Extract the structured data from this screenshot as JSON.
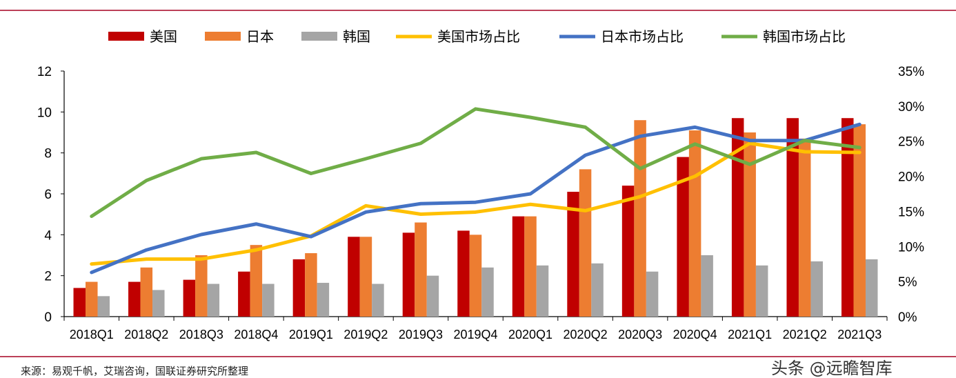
{
  "chart_data": {
    "type": "bar",
    "title": "",
    "categories": [
      "2018Q1",
      "2018Q2",
      "2018Q3",
      "2018Q4",
      "2019Q1",
      "2019Q2",
      "2019Q3",
      "2019Q4",
      "2020Q1",
      "2020Q2",
      "2020Q3",
      "2020Q4",
      "2021Q1",
      "2021Q2",
      "2021Q3"
    ],
    "y_left": {
      "ylim": [
        0,
        12
      ],
      "ticks": [
        "0",
        "2",
        "4",
        "6",
        "8",
        "10",
        "12"
      ]
    },
    "y_right": {
      "ylim": [
        0,
        35
      ],
      "ticks": [
        "0%",
        "5%",
        "10%",
        "15%",
        "20%",
        "25%",
        "30%",
        "35%"
      ],
      "unit": "%"
    },
    "grid": false,
    "legend_position": "top",
    "bar_series": [
      {
        "name": "美国",
        "color": "#c00000",
        "values": [
          1.4,
          1.7,
          1.8,
          2.2,
          2.8,
          3.9,
          4.1,
          4.2,
          4.9,
          6.1,
          6.4,
          7.8,
          9.7,
          9.7,
          9.7
        ]
      },
      {
        "name": "日本",
        "color": "#ed7d31",
        "values": [
          1.7,
          2.4,
          3.0,
          3.5,
          3.1,
          3.9,
          4.6,
          4.0,
          4.9,
          7.2,
          9.6,
          9.1,
          9.0,
          8.7,
          9.4
        ]
      },
      {
        "name": "韩国",
        "color": "#a5a5a5",
        "values": [
          1.0,
          1.3,
          1.6,
          1.6,
          1.65,
          1.6,
          2.0,
          2.4,
          2.5,
          2.6,
          2.2,
          3.0,
          2.5,
          2.7,
          2.8
        ]
      }
    ],
    "line_series": [
      {
        "name": "美国市场占比",
        "color": "#ffc000",
        "values": [
          7.5,
          8.2,
          8.2,
          9.5,
          11.5,
          15.8,
          14.6,
          14.9,
          16.0,
          15.1,
          17.1,
          20.0,
          24.7,
          23.5,
          23.4
        ]
      },
      {
        "name": "日本市场占比",
        "color": "#4472c4",
        "values": [
          6.3,
          9.5,
          11.7,
          13.2,
          11.4,
          14.9,
          16.1,
          16.3,
          17.5,
          23.0,
          25.7,
          27.0,
          25.1,
          25.1,
          27.4
        ]
      },
      {
        "name": "韩国市场占比",
        "color": "#70ad47",
        "values": [
          14.3,
          19.4,
          22.5,
          23.4,
          20.4,
          22.5,
          24.7,
          29.6,
          28.4,
          27.0,
          21.1,
          24.6,
          21.7,
          25.1,
          24.1
        ]
      }
    ]
  },
  "source": "来源：易观千帆，艾瑞咨询，国联证券研究所整理",
  "watermark": "头条 @远瞻智库",
  "frame_color": "#a50021"
}
